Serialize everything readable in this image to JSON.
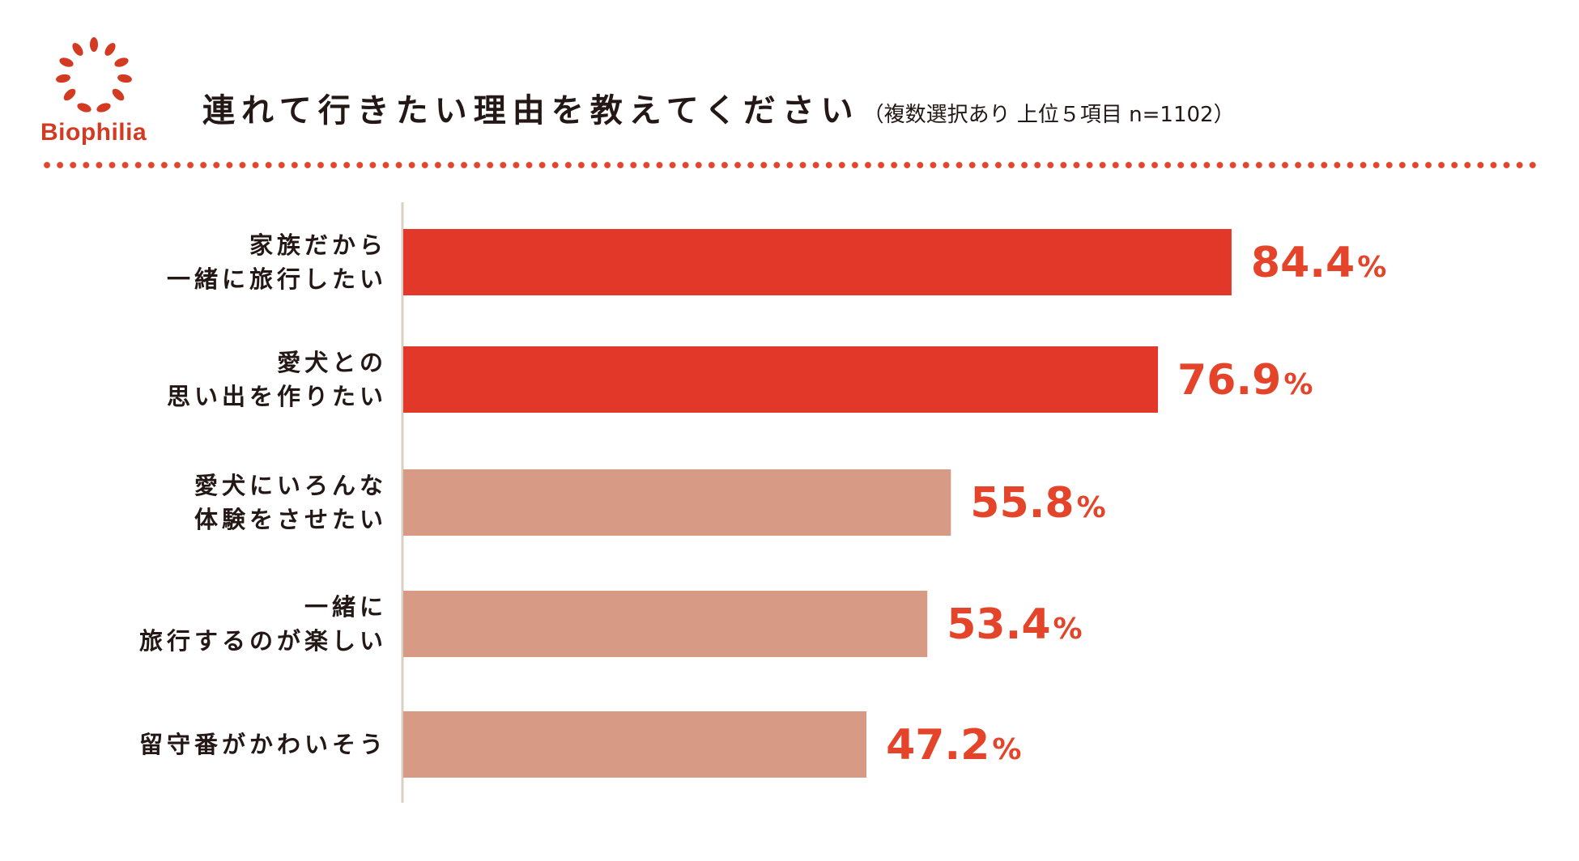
{
  "logo": {
    "text": "Biophilia",
    "color": "#d23a22",
    "icon": "laurel-wreath-icon"
  },
  "header": {
    "title": "連れて行きたい理由を教えてください",
    "subtitle": "（複数選択あり 上位５項目 n=1102）"
  },
  "colors": {
    "accent": "#e2382a",
    "muted": "#d69a85",
    "value_text": "#e4452a",
    "divider": "#e2462c",
    "axis": "#d8d0c2"
  },
  "chart_data": {
    "type": "bar",
    "orientation": "horizontal",
    "categories": [
      [
        "家族だから",
        "一緒に旅行したい"
      ],
      [
        "愛犬との",
        "思い出を作りたい"
      ],
      [
        "愛犬にいろんな",
        "体験をさせたい"
      ],
      [
        "一緒に",
        "旅行するのが楽しい"
      ],
      [
        "留守番がかわいそう"
      ]
    ],
    "values": [
      84.4,
      76.9,
      55.8,
      53.4,
      47.2
    ],
    "value_labels": [
      "84.4",
      "76.9",
      "55.8",
      "53.4",
      "47.2"
    ],
    "unit": "%",
    "highlight": [
      true,
      true,
      false,
      false,
      false
    ],
    "xlim": [
      0,
      100
    ],
    "title": "連れて行きたい理由を教えてください",
    "grid": false,
    "legend": "none"
  }
}
